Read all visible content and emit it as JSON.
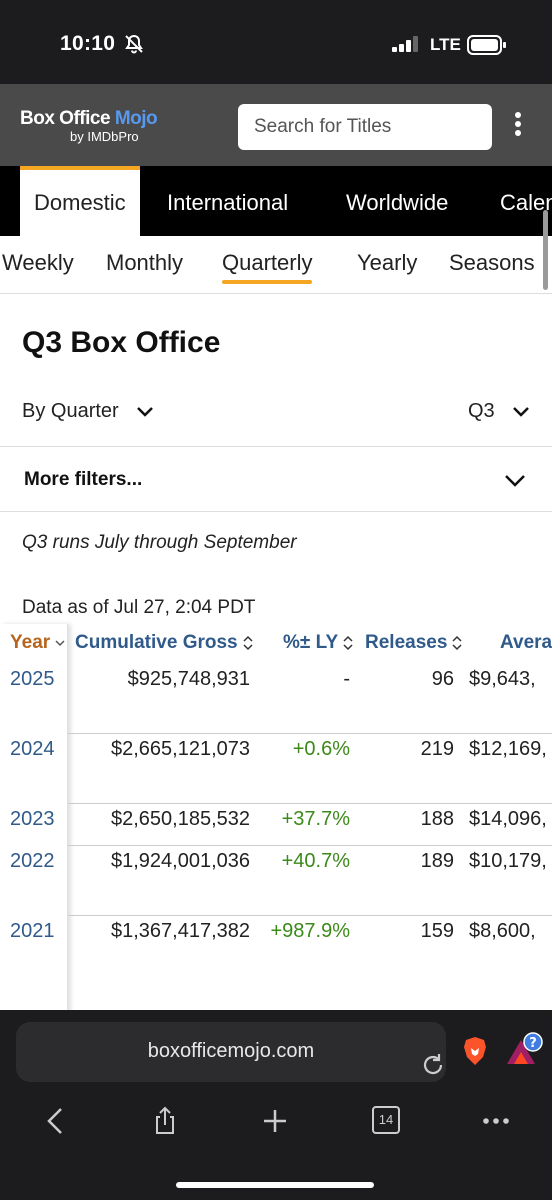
{
  "status_bar": {
    "time": "10:10",
    "network": "LTE"
  },
  "header": {
    "logo_main": "Box Office",
    "logo_mojo": "Mojo",
    "logo_sub": "by IMDbPro",
    "search_placeholder": "Search for Titles"
  },
  "region_tabs": [
    {
      "label": "Domestic",
      "active": true
    },
    {
      "label": "International",
      "active": false
    },
    {
      "label": "Worldwide",
      "active": false
    },
    {
      "label": "Calendar",
      "active": false
    }
  ],
  "period_tabs": [
    {
      "label": "Weekly",
      "active": false
    },
    {
      "label": "Monthly",
      "active": false
    },
    {
      "label": "Quarterly",
      "active": true
    },
    {
      "label": "Yearly",
      "active": false
    },
    {
      "label": "Seasons",
      "active": false
    }
  ],
  "main": {
    "title": "Q3 Box Office",
    "filter_left": "By Quarter",
    "filter_right": "Q3",
    "more_filters": "More filters...",
    "note": "Q3 runs July through September",
    "data_as_of": "Data as of Jul 27, 2:04 PDT"
  },
  "table": {
    "headers": {
      "year": "Year",
      "gross": "Cumulative Gross",
      "change": "%± LY",
      "releases": "Releases",
      "avg": "Average"
    },
    "rows": [
      {
        "year": "2025",
        "gross": "$925,748,931",
        "change": "-",
        "releases": "96",
        "avg": "$9,643,"
      },
      {
        "year": "2024",
        "gross": "$2,665,121,073",
        "change": "+0.6%",
        "releases": "219",
        "avg": "$12,169,"
      },
      {
        "year": "2023",
        "gross": "$2,650,185,532",
        "change": "+37.7%",
        "releases": "188",
        "avg": "$14,096,"
      },
      {
        "year": "2022",
        "gross": "$1,924,001,036",
        "change": "+40.7%",
        "releases": "189",
        "avg": "$10,179,"
      },
      {
        "year": "2021",
        "gross": "$1,367,417,382",
        "change": "+987.9%",
        "releases": "159",
        "avg": "$8,600,"
      }
    ]
  },
  "browser": {
    "url": "boxofficemojo.com",
    "tab_count": "14"
  },
  "colors": {
    "accent_orange": "#f5a623",
    "link_blue": "#2f5a8a",
    "positive_green": "#3c8a1a"
  }
}
